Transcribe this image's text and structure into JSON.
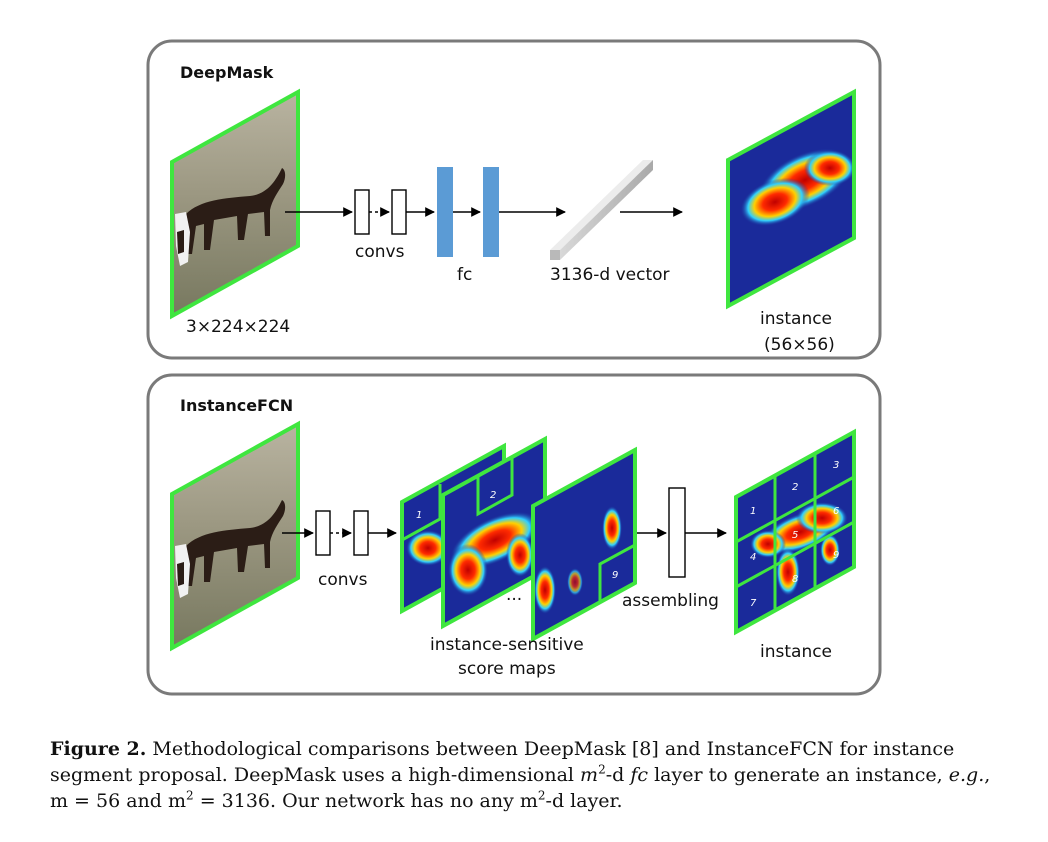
{
  "panels": {
    "deepmask": {
      "title": "DeepMask",
      "input_label": "3×224×224",
      "convs_label": "convs",
      "fc_label": "fc",
      "vector_label": "3136-d vector",
      "output_label_line1": "instance",
      "output_label_line2": "(56×56)"
    },
    "instancefcn": {
      "title": "InstanceFCN",
      "convs_label": "convs",
      "ellipsis": "...",
      "maps_label_line1": "instance-sensitive",
      "maps_label_line2": "score maps",
      "assembling_label": "assembling",
      "output_label": "instance",
      "map_cell_labels": [
        "1",
        "2",
        "9"
      ],
      "grid_cell_labels": [
        "1",
        "2",
        "3",
        "4",
        "5",
        "6",
        "7",
        "8",
        "9"
      ]
    }
  },
  "caption": {
    "figure_label": "Figure 2.",
    "part1": "Methodological comparisons between DeepMask [8] and InstanceFCN for instance segment proposal. DeepMask uses a high-dimensional",
    "m": "m",
    "exp": "2",
    "part2": "-d",
    "fc": "fc",
    "part3": "layer to generate an instance,",
    "eg": "e.g.",
    "part4": ", m = 56 and m",
    "part5": " = 3136. Our network has no any m",
    "part6": "-d layer."
  },
  "colors": {
    "panel_border": "#7a7a7a",
    "frame_green": "#3fe63f",
    "fc_blue": "#5b9bd5",
    "heatmap_background": "#1a2a9a",
    "heatmap_hot": "#e01010"
  }
}
